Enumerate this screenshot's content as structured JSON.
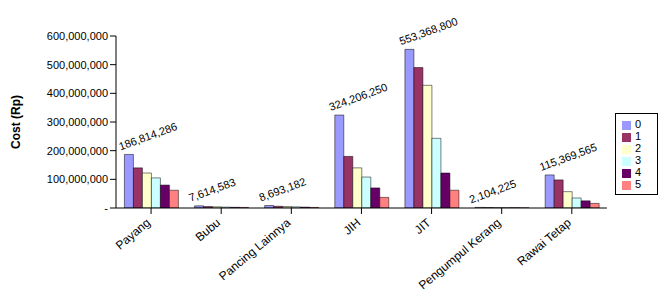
{
  "chart_data": {
    "type": "bar",
    "y_label": "Cost (Rp)",
    "categories": [
      "Payang",
      "Bubu",
      "Pancing Lainnya",
      "JIH",
      "JIT",
      "Pengumpul Kerang",
      "Rawai Tetap"
    ],
    "series": [
      {
        "name": "0",
        "color": "#9999ff",
        "values": [
          186814286,
          7614583,
          8693182,
          324206250,
          553368800,
          2104225,
          115369565
        ],
        "value_labels": [
          "186,814,286",
          "7,614,583",
          "8,693,182",
          "324,206,250",
          "553,368,800",
          "2,104,225",
          "115,369,565"
        ]
      },
      {
        "name": "1",
        "color": "#993366",
        "values": [
          140000000,
          5000000,
          6000000,
          180000000,
          490000000,
          1500000,
          98000000
        ]
      },
      {
        "name": "2",
        "color": "#ffffcc",
        "values": [
          122000000,
          4000000,
          5000000,
          140000000,
          428000000,
          1200000,
          57000000
        ]
      },
      {
        "name": "3",
        "color": "#ccffff",
        "values": [
          105000000,
          3000000,
          4000000,
          108000000,
          243000000,
          1000000,
          35000000
        ]
      },
      {
        "name": "4",
        "color": "#660066",
        "values": [
          80000000,
          2500000,
          3000000,
          70000000,
          122000000,
          800000,
          25000000
        ]
      },
      {
        "name": "5",
        "color": "#ff8080",
        "values": [
          62000000,
          2000000,
          2000000,
          37000000,
          62000000,
          500000,
          16000000
        ]
      }
    ],
    "ylim": [
      0,
      600000000
    ],
    "yticks": [
      {
        "value": 0,
        "label": "-"
      },
      {
        "value": 100000000,
        "label": "100,000,000"
      },
      {
        "value": 200000000,
        "label": "200,000,000"
      },
      {
        "value": 300000000,
        "label": "300,000,000"
      },
      {
        "value": 400000000,
        "label": "400,000,000"
      },
      {
        "value": 500000000,
        "label": "500,000,000"
      },
      {
        "value": 600000000,
        "label": "600,000,000"
      }
    ],
    "grid": false,
    "legend": "right"
  }
}
